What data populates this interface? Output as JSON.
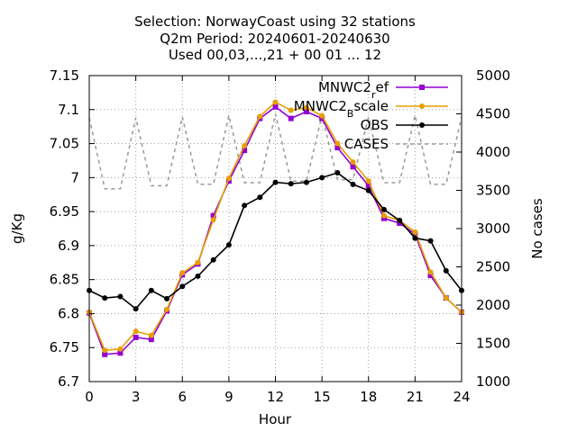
{
  "chart_data": {
    "type": "line",
    "title_lines": [
      "Selection: NorwayCoast using    32 stations",
      "Q2m   Period: 20240601-20240630",
      "Used 00,03,...,21 + 00 01 ... 12"
    ],
    "xlabel": "Hour",
    "ylabel": "g/Kg",
    "y2label": "No cases",
    "xlim": [
      0,
      24
    ],
    "ylim": [
      6.7,
      7.15
    ],
    "y2lim": [
      1000,
      5000
    ],
    "xticks": [
      "0",
      "3",
      "6",
      "9",
      "12",
      "15",
      "18",
      "21",
      "24"
    ],
    "yticks": [
      "6.7",
      "6.75",
      "6.8",
      "6.85",
      "6.9",
      "6.95",
      "7",
      "7.05",
      "7.1",
      "7.15"
    ],
    "y2ticks": [
      "1000",
      "1500",
      "2000",
      "2500",
      "3000",
      "3500",
      "4000",
      "4500",
      "5000"
    ],
    "grid": true,
    "legend_position": "top-right",
    "x": [
      0,
      1,
      2,
      3,
      4,
      5,
      6,
      7,
      8,
      9,
      10,
      11,
      12,
      13,
      14,
      15,
      16,
      17,
      18,
      19,
      20,
      21,
      22,
      23,
      24
    ],
    "series": [
      {
        "name": "MNWC2",
        "name_sub": "r",
        "name_tail": "ef",
        "color": "#9400d3",
        "marker": "square",
        "axis": "y",
        "values": [
          6.801,
          6.74,
          6.742,
          6.765,
          6.762,
          6.804,
          6.857,
          6.873,
          6.944,
          6.995,
          7.04,
          7.087,
          7.104,
          7.087,
          7.097,
          7.087,
          7.044,
          7.016,
          6.988,
          6.94,
          6.933,
          6.917,
          6.856,
          6.823,
          6.802
        ]
      },
      {
        "name": "MNWC2",
        "name_sub": "B",
        "name_tail": "scale",
        "color": "#e69f00",
        "marker": "circle",
        "axis": "y",
        "values": [
          6.802,
          6.746,
          6.748,
          6.774,
          6.768,
          6.806,
          6.86,
          6.875,
          6.938,
          6.999,
          7.047,
          7.09,
          7.111,
          7.099,
          7.103,
          7.091,
          7.05,
          7.023,
          6.995,
          6.944,
          6.937,
          6.92,
          6.861,
          6.823,
          6.802
        ]
      },
      {
        "name": "OBS",
        "color": "#000000",
        "marker": "circle",
        "axis": "y",
        "values": [
          6.834,
          6.823,
          6.825,
          6.807,
          6.834,
          6.822,
          6.84,
          6.855,
          6.879,
          6.901,
          6.959,
          6.971,
          6.993,
          6.991,
          6.993,
          7.0,
          7.007,
          6.99,
          6.981,
          6.953,
          6.937,
          6.911,
          6.907,
          6.863,
          6.834
        ]
      },
      {
        "name": "CASES",
        "color": "#999999",
        "dashed": true,
        "axis": "y2",
        "values": [
          4450,
          3520,
          3520,
          4450,
          3560,
          3560,
          4460,
          3580,
          3580,
          4480,
          3600,
          3600,
          4500,
          3620,
          3620,
          4480,
          3640,
          3640,
          4460,
          3600,
          3600,
          4480,
          3580,
          3580,
          4460
        ]
      }
    ]
  }
}
